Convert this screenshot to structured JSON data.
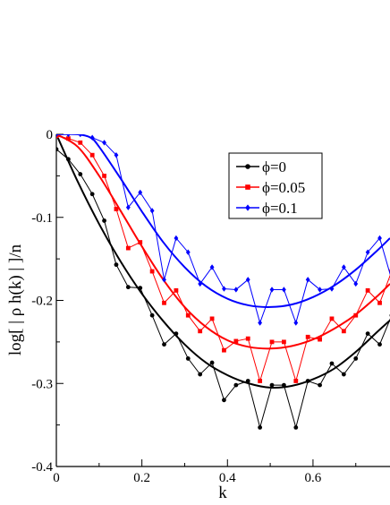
{
  "chart_data": {
    "type": "line",
    "xlabel": "k",
    "ylabel": "log[ | ρ h(k) | ]/n",
    "xlim": [
      0,
      0.78
    ],
    "ylim": [
      -0.4,
      0
    ],
    "x_ticks": [
      0,
      0.2,
      0.4,
      0.6
    ],
    "x_tick_labels": [
      "0",
      "0.2",
      "0.4",
      "0.6"
    ],
    "y_ticks": [
      0,
      -0.1,
      -0.2,
      -0.3,
      -0.4
    ],
    "y_tick_labels": [
      "0",
      "-0.1",
      "-0.2",
      "-0.3",
      "-0.4"
    ],
    "legend_position": "top-right",
    "series": [
      {
        "name": "ϕ=0",
        "color": "#000000",
        "marker": "circle",
        "x": [
          0.0,
          0.028,
          0.056,
          0.084,
          0.112,
          0.14,
          0.168,
          0.196,
          0.224,
          0.252,
          0.28,
          0.308,
          0.336,
          0.364,
          0.392,
          0.42,
          0.448,
          0.476,
          0.504,
          0.532,
          0.56,
          0.588,
          0.616,
          0.644,
          0.672,
          0.7,
          0.728,
          0.756,
          0.784
        ],
        "y": [
          -0.018,
          -0.03,
          -0.048,
          -0.072,
          -0.104,
          -0.157,
          -0.184,
          -0.185,
          -0.218,
          -0.253,
          -0.24,
          -0.27,
          -0.289,
          -0.275,
          -0.32,
          -0.302,
          -0.297,
          -0.353,
          -0.302,
          -0.302,
          -0.353,
          -0.297,
          -0.302,
          -0.276,
          -0.289,
          -0.27,
          -0.24,
          -0.253,
          -0.218
        ],
        "fit": [
          [
            0,
            0
          ],
          [
            0.05,
            -0.057
          ],
          [
            0.1,
            -0.108
          ],
          [
            0.15,
            -0.153
          ],
          [
            0.2,
            -0.192
          ],
          [
            0.25,
            -0.225
          ],
          [
            0.3,
            -0.253
          ],
          [
            0.35,
            -0.275
          ],
          [
            0.4,
            -0.29
          ],
          [
            0.45,
            -0.3
          ],
          [
            0.5,
            -0.305
          ],
          [
            0.55,
            -0.303
          ],
          [
            0.6,
            -0.295
          ],
          [
            0.65,
            -0.282
          ],
          [
            0.7,
            -0.262
          ],
          [
            0.75,
            -0.238
          ],
          [
            0.78,
            -0.224
          ]
        ]
      },
      {
        "name": "ϕ=0.05",
        "color": "#ff0000",
        "marker": "square",
        "x": [
          0.0,
          0.028,
          0.056,
          0.084,
          0.112,
          0.14,
          0.168,
          0.196,
          0.224,
          0.252,
          0.28,
          0.308,
          0.336,
          0.364,
          0.392,
          0.42,
          0.448,
          0.476,
          0.504,
          0.532,
          0.56,
          0.588,
          0.616,
          0.644,
          0.672,
          0.7,
          0.728,
          0.756,
          0.784
        ],
        "y": [
          -0.002,
          -0.005,
          -0.01,
          -0.025,
          -0.05,
          -0.09,
          -0.137,
          -0.13,
          -0.165,
          -0.203,
          -0.188,
          -0.218,
          -0.237,
          -0.222,
          -0.26,
          -0.249,
          -0.246,
          -0.297,
          -0.25,
          -0.25,
          -0.297,
          -0.244,
          -0.247,
          -0.222,
          -0.237,
          -0.218,
          -0.188,
          -0.203,
          -0.165
        ],
        "fit": [
          [
            0,
            0
          ],
          [
            0.05,
            -0.015
          ],
          [
            0.1,
            -0.05
          ],
          [
            0.15,
            -0.092
          ],
          [
            0.2,
            -0.135
          ],
          [
            0.25,
            -0.175
          ],
          [
            0.3,
            -0.208
          ],
          [
            0.35,
            -0.232
          ],
          [
            0.4,
            -0.248
          ],
          [
            0.45,
            -0.256
          ],
          [
            0.5,
            -0.258
          ],
          [
            0.55,
            -0.255
          ],
          [
            0.6,
            -0.247
          ],
          [
            0.65,
            -0.234
          ],
          [
            0.7,
            -0.217
          ],
          [
            0.75,
            -0.195
          ],
          [
            0.78,
            -0.18
          ]
        ]
      },
      {
        "name": "ϕ=0.1",
        "color": "#0000ff",
        "marker": "diamond",
        "x": [
          0.0,
          0.028,
          0.056,
          0.084,
          0.112,
          0.14,
          0.168,
          0.196,
          0.224,
          0.252,
          0.28,
          0.308,
          0.336,
          0.364,
          0.392,
          0.42,
          0.448,
          0.476,
          0.504,
          0.532,
          0.56,
          0.588,
          0.616,
          0.644,
          0.672,
          0.7,
          0.728,
          0.756,
          0.784
        ],
        "y": [
          0.0,
          0.0,
          0.0,
          -0.004,
          -0.01,
          -0.025,
          -0.088,
          -0.07,
          -0.092,
          -0.175,
          -0.125,
          -0.142,
          -0.18,
          -0.16,
          -0.186,
          -0.187,
          -0.175,
          -0.227,
          -0.187,
          -0.187,
          -0.227,
          -0.175,
          -0.187,
          -0.186,
          -0.16,
          -0.18,
          -0.142,
          -0.125,
          -0.175
        ],
        "fit": [
          [
            0,
            0
          ],
          [
            0.05,
            0.0
          ],
          [
            0.08,
            -0.004
          ],
          [
            0.1,
            -0.015
          ],
          [
            0.15,
            -0.053
          ],
          [
            0.2,
            -0.093
          ],
          [
            0.25,
            -0.13
          ],
          [
            0.3,
            -0.16
          ],
          [
            0.35,
            -0.183
          ],
          [
            0.4,
            -0.198
          ],
          [
            0.45,
            -0.206
          ],
          [
            0.5,
            -0.208
          ],
          [
            0.55,
            -0.205
          ],
          [
            0.6,
            -0.196
          ],
          [
            0.65,
            -0.182
          ],
          [
            0.7,
            -0.163
          ],
          [
            0.75,
            -0.14
          ],
          [
            0.78,
            -0.125
          ]
        ]
      }
    ]
  }
}
